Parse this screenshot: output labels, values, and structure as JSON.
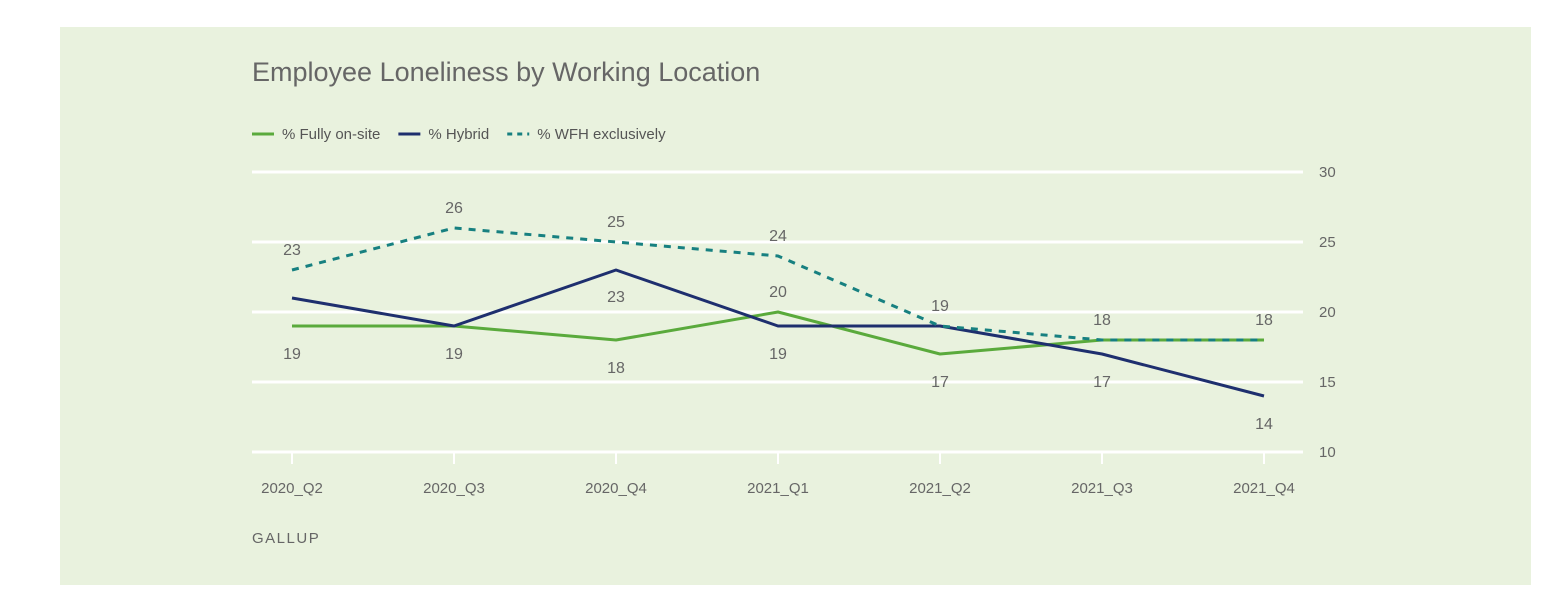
{
  "chart_data": {
    "type": "line",
    "title": "Employee Loneliness by Working Location",
    "categories": [
      "2020_Q2",
      "2020_Q3",
      "2020_Q4",
      "2021_Q1",
      "2021_Q2",
      "2021_Q3",
      "2021_Q4"
    ],
    "series": [
      {
        "name": "% Fully on-site",
        "color": "#5aaa3c",
        "style": "solid",
        "values": [
          19,
          19,
          18,
          20,
          17,
          18,
          18
        ],
        "labels": [
          "19",
          "19",
          "18",
          "20",
          "17",
          null,
          null
        ]
      },
      {
        "name": "% Hybrid",
        "color": "#1e2f6e",
        "style": "solid",
        "values": [
          21,
          19,
          23,
          19,
          19,
          17,
          14
        ],
        "labels": [
          null,
          null,
          "23",
          "19",
          null,
          "17",
          "14"
        ]
      },
      {
        "name": "% WFH exclusively",
        "color": "#178080",
        "style": "dashed",
        "values": [
          23,
          26,
          25,
          24,
          19,
          18,
          18
        ],
        "labels": [
          "23",
          "26",
          "25",
          "24",
          "19",
          "18",
          "18"
        ]
      }
    ],
    "ylim": [
      10,
      30
    ],
    "yticks": [
      "10",
      "15",
      "20",
      "25",
      "30"
    ],
    "ytick_values": [
      10,
      15,
      20,
      25,
      30
    ],
    "grid": true,
    "legend": "top-left",
    "xlabel": "",
    "ylabel": "",
    "source": "GALLUP"
  }
}
